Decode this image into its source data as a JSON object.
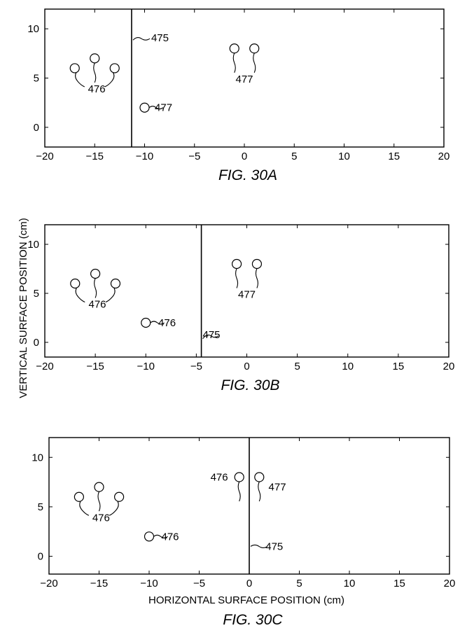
{
  "figure": {
    "ylabel": "VERTICAL SURFACE POSITION (cm)",
    "xlabel": "HORIZONTAL SURFACE POSITION (cm)"
  },
  "chart_data": [
    {
      "type": "scatter",
      "caption": "FIG. 30A",
      "xlim": [
        -20,
        20
      ],
      "ylim": [
        -2,
        12
      ],
      "xticks": [
        -20,
        -15,
        -10,
        -5,
        0,
        5,
        10,
        15,
        20
      ],
      "yticks": [
        0,
        5,
        10
      ],
      "boundary": {
        "x": -11.3,
        "label": "475"
      },
      "points": [
        {
          "x": -17,
          "y": 6
        },
        {
          "x": -15,
          "y": 7
        },
        {
          "x": -13,
          "y": 6
        },
        {
          "x": -10,
          "y": 2
        },
        {
          "x": -1,
          "y": 8
        },
        {
          "x": 1,
          "y": 8
        }
      ],
      "group_labels": [
        {
          "label": "476",
          "x": -14.8,
          "y": 3.9
        },
        {
          "label": "477",
          "x": 0,
          "y": 4.9
        },
        {
          "label": "477",
          "x": -8.1,
          "y": 2.0
        }
      ]
    },
    {
      "type": "scatter",
      "caption": "FIG. 30B",
      "xlim": [
        -20,
        20
      ],
      "ylim": [
        -1.5,
        12
      ],
      "xticks": [
        -20,
        -15,
        -10,
        -5,
        0,
        5,
        10,
        15,
        20
      ],
      "yticks": [
        0,
        5,
        10
      ],
      "boundary": {
        "x": -4.5,
        "label": "475"
      },
      "points": [
        {
          "x": -17,
          "y": 6
        },
        {
          "x": -15,
          "y": 7
        },
        {
          "x": -13,
          "y": 6
        },
        {
          "x": -10,
          "y": 2
        },
        {
          "x": -1,
          "y": 8
        },
        {
          "x": 1,
          "y": 8
        }
      ],
      "group_labels": [
        {
          "label": "476",
          "x": -14.8,
          "y": 3.9
        },
        {
          "label": "477",
          "x": 0,
          "y": 4.9
        },
        {
          "label": "476",
          "x": -7.9,
          "y": 2.0
        },
        {
          "label": "475",
          "x": -3.5,
          "y": 0.8
        }
      ]
    },
    {
      "type": "scatter",
      "caption": "FIG. 30C",
      "xlim": [
        -20,
        20
      ],
      "ylim": [
        -1.8,
        12
      ],
      "xticks": [
        -20,
        -15,
        -10,
        -5,
        0,
        5,
        10,
        15,
        20
      ],
      "yticks": [
        0,
        5,
        10
      ],
      "boundary": {
        "x": 0,
        "label": "475"
      },
      "points": [
        {
          "x": -17,
          "y": 6
        },
        {
          "x": -15,
          "y": 7
        },
        {
          "x": -13,
          "y": 6
        },
        {
          "x": -10,
          "y": 2
        },
        {
          "x": -1,
          "y": 8
        },
        {
          "x": 1,
          "y": 8
        }
      ],
      "group_labels": [
        {
          "label": "476",
          "x": -14.8,
          "y": 3.9
        },
        {
          "label": "476",
          "x": -7.9,
          "y": 2.0
        },
        {
          "label": "476",
          "x": -3.0,
          "y": 8.0
        },
        {
          "label": "477",
          "x": 2.8,
          "y": 7.0
        },
        {
          "label": "475",
          "x": 2.5,
          "y": 1.0
        }
      ]
    }
  ]
}
